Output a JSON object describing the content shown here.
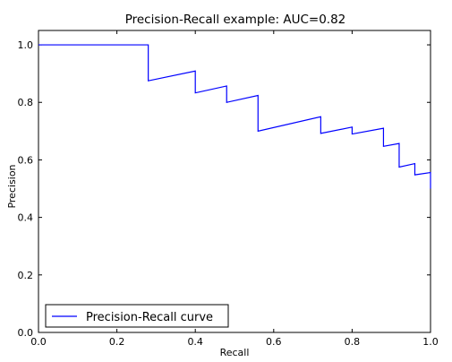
{
  "chart_data": {
    "type": "line",
    "title": "Precision-Recall example: AUC=0.82",
    "xlabel": "Recall",
    "ylabel": "Precision",
    "xlim": [
      0.0,
      1.0
    ],
    "ylim": [
      0.0,
      1.05
    ],
    "xticks": [
      "0.0",
      "0.2",
      "0.4",
      "0.6",
      "0.8",
      "1.0"
    ],
    "yticks": [
      "0.0",
      "0.2",
      "0.4",
      "0.6",
      "0.8",
      "1.0"
    ],
    "grid": false,
    "legend_position": "lower-left",
    "series": [
      {
        "name": "Precision-Recall curve",
        "color": "#0000ff",
        "x": [
          0.0,
          0.28,
          0.28,
          0.4,
          0.4,
          0.48,
          0.48,
          0.56,
          0.56,
          0.72,
          0.72,
          0.8,
          0.8,
          0.88,
          0.88,
          0.92,
          0.92,
          0.96,
          0.96,
          1.0,
          1.0
        ],
        "y": [
          1.0,
          1.0,
          0.875,
          0.909,
          0.833,
          0.857,
          0.8,
          0.824,
          0.7,
          0.75,
          0.692,
          0.714,
          0.69,
          0.71,
          0.647,
          0.657,
          0.575,
          0.587,
          0.548,
          0.556,
          0.5
        ]
      }
    ]
  }
}
